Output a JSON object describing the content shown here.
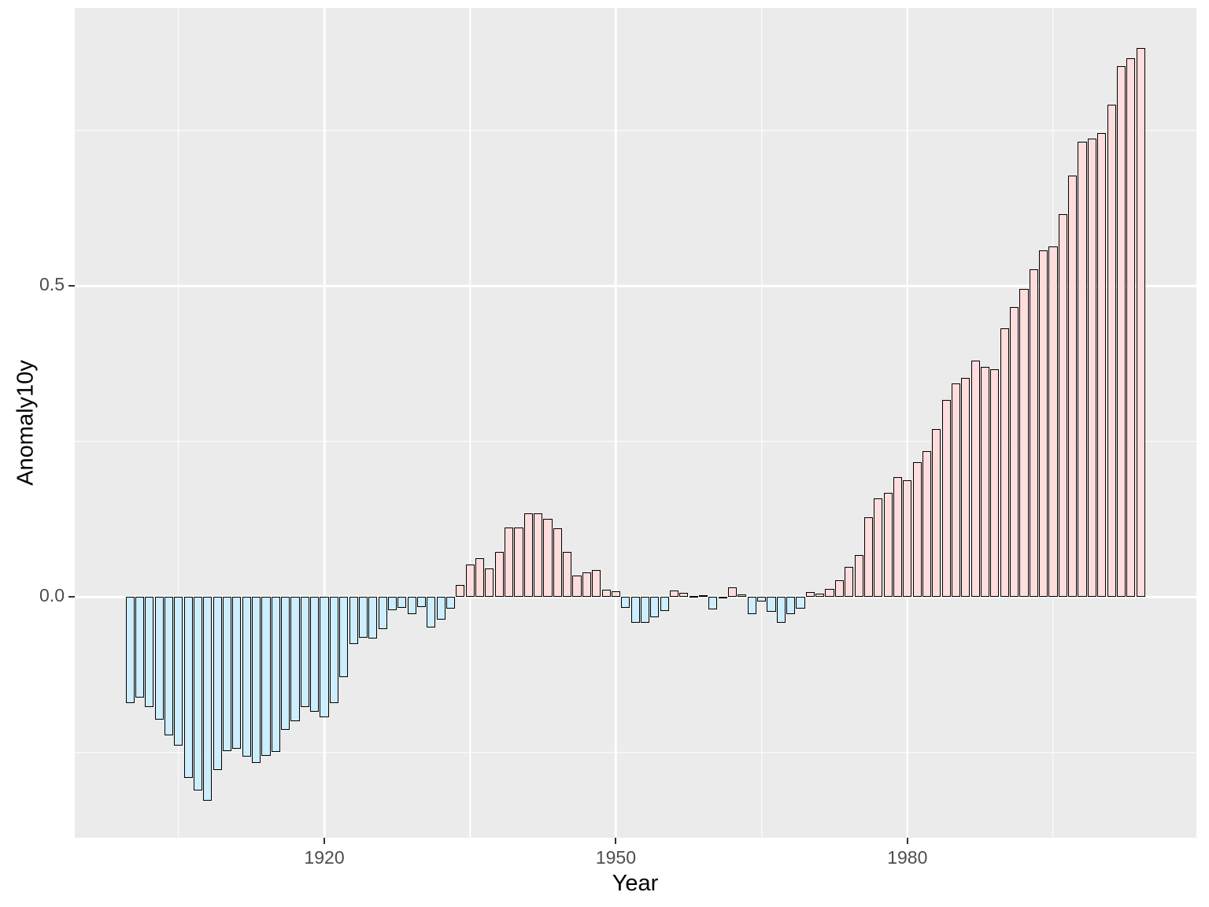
{
  "chart_data": {
    "type": "bar",
    "title": "",
    "xlabel": "Year",
    "ylabel": "Anomaly10y",
    "xlim": [
      1894.32,
      2009.74
    ],
    "ylim": [
      -0.387,
      0.947
    ],
    "grid": true,
    "legend": false,
    "bar_width_years": 0.9,
    "x_tick_values": [
      1920,
      1950,
      1980
    ],
    "x_tick_labels": [
      "1920",
      "1950",
      "1980"
    ],
    "y_tick_values": [
      0.0,
      0.5
    ],
    "y_tick_labels": [
      "0.0",
      "0.5"
    ],
    "x_minor_values": [
      1905,
      1935,
      1965,
      1995
    ],
    "y_minor_values": [
      -0.25,
      0.25,
      0.75
    ],
    "x": [
      1900,
      1901,
      1902,
      1903,
      1904,
      1905,
      1906,
      1907,
      1908,
      1909,
      1910,
      1911,
      1912,
      1913,
      1914,
      1915,
      1916,
      1917,
      1918,
      1919,
      1920,
      1921,
      1922,
      1923,
      1924,
      1925,
      1926,
      1927,
      1928,
      1929,
      1930,
      1931,
      1932,
      1933,
      1934,
      1935,
      1936,
      1937,
      1938,
      1939,
      1940,
      1941,
      1942,
      1943,
      1944,
      1945,
      1946,
      1947,
      1948,
      1949,
      1950,
      1951,
      1952,
      1953,
      1954,
      1955,
      1956,
      1957,
      1958,
      1959,
      1960,
      1961,
      1962,
      1963,
      1964,
      1965,
      1966,
      1967,
      1968,
      1969,
      1970,
      1971,
      1972,
      1973,
      1974,
      1975,
      1976,
      1977,
      1978,
      1979,
      1980,
      1981,
      1982,
      1983,
      1984,
      1985,
      1986,
      1987,
      1988,
      1989,
      1990,
      1991,
      1992,
      1993,
      1994,
      1995,
      1996,
      1997,
      1998,
      1999,
      2000,
      2001,
      2002,
      2003,
      2004
    ],
    "y": [
      -0.171,
      -0.162,
      -0.177,
      -0.197,
      -0.222,
      -0.239,
      -0.291,
      -0.311,
      -0.327,
      -0.278,
      -0.248,
      -0.244,
      -0.257,
      -0.267,
      -0.255,
      -0.249,
      -0.214,
      -0.2,
      -0.177,
      -0.184,
      -0.194,
      -0.17,
      -0.129,
      -0.076,
      -0.065,
      -0.067,
      -0.051,
      -0.021,
      -0.018,
      -0.027,
      -0.016,
      -0.049,
      -0.037,
      -0.019,
      0.019,
      0.052,
      0.062,
      0.046,
      0.073,
      0.112,
      0.112,
      0.134,
      0.134,
      0.125,
      0.111,
      0.072,
      0.035,
      0.04,
      0.043,
      0.012,
      0.009,
      -0.017,
      -0.041,
      -0.041,
      -0.032,
      -0.022,
      0.01,
      0.007,
      0.002,
      0.003,
      -0.02,
      -0.001,
      0.016,
      0.004,
      -0.028,
      -0.007,
      -0.024,
      -0.042,
      -0.027,
      -0.019,
      0.008,
      0.005,
      0.013,
      0.027,
      0.048,
      0.067,
      0.128,
      0.158,
      0.167,
      0.193,
      0.187,
      0.217,
      0.235,
      0.27,
      0.317,
      0.343,
      0.352,
      0.38,
      0.37,
      0.366,
      0.432,
      0.466,
      0.495,
      0.527,
      0.557,
      0.564,
      0.615,
      0.678,
      0.732,
      0.737,
      0.746,
      0.791,
      0.853,
      0.866,
      0.882
    ],
    "colors": {
      "positive_fill": "#FFDDDD",
      "negative_fill": "#CCEEFF",
      "bar_border": "#000000",
      "panel_background": "#EBEBEB",
      "gridline": "#FFFFFF",
      "tick_mark": "#333333",
      "tick_label": "#4D4D4D",
      "axis_title": "#000000",
      "figure_background": "#FFFFFF"
    }
  }
}
